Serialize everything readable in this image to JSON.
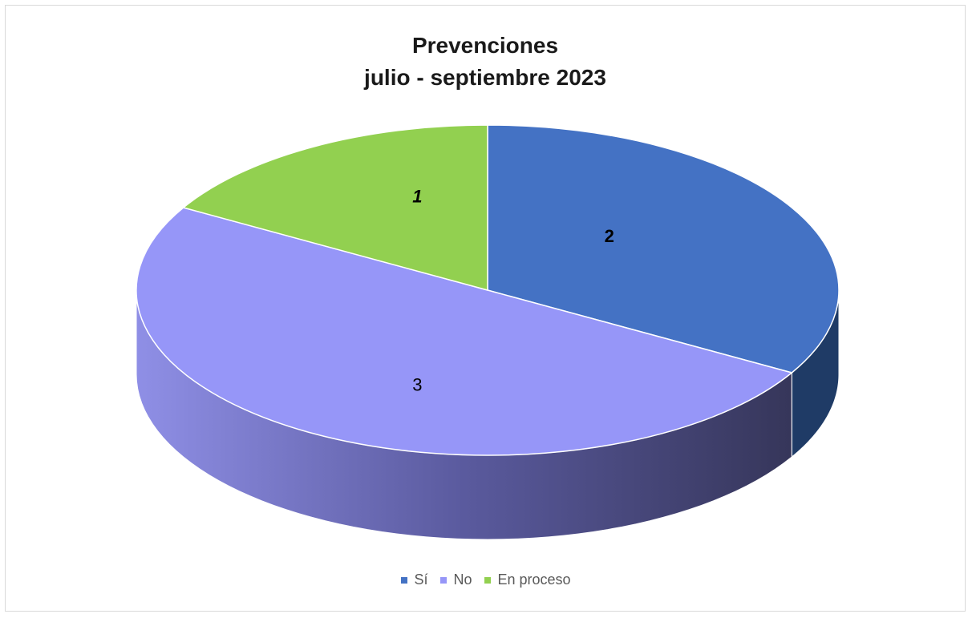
{
  "chart_data": {
    "type": "pie",
    "title": [
      "Prevenciones",
      "julio - septiembre 2023"
    ],
    "categories": [
      "Sí",
      "No",
      "En proceso"
    ],
    "values": [
      2,
      3,
      1
    ],
    "data_labels": [
      "2",
      "3",
      "1"
    ],
    "colors": [
      "#4472c4",
      "#9696f8",
      "#92d050"
    ],
    "side_colors": [
      "#1f3b66",
      "#3e3c66",
      "#4a7a2a"
    ],
    "legend_position": "bottom",
    "style": "3d-pie"
  }
}
